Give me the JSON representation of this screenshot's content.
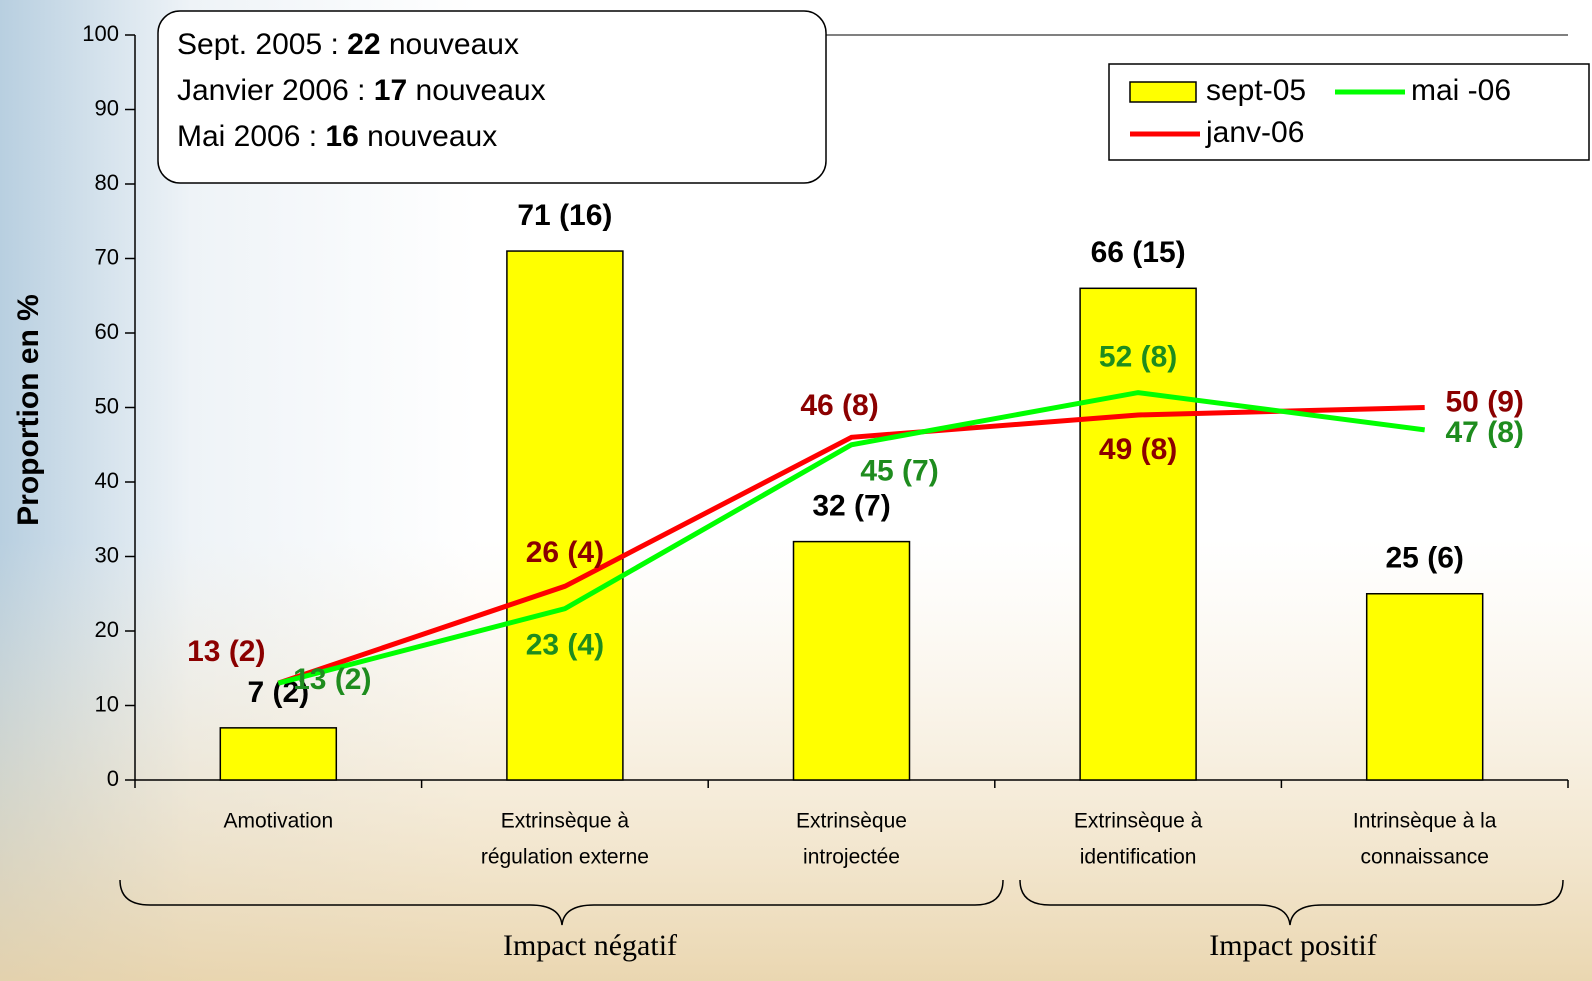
{
  "chart_data": {
    "type": "bar",
    "y_label": "Proportion en %",
    "categories": [
      [
        "Amotivation"
      ],
      [
        "Extrinsèque à",
        "régulation externe"
      ],
      [
        "Extrinsèque",
        "introjectée"
      ],
      [
        "Extrinsèque à",
        "identification"
      ],
      [
        "Intrinsèque à la",
        "connaissance"
      ]
    ],
    "series": [
      {
        "name": "sept-05",
        "type": "bar",
        "color": "#ffff00",
        "label_color": "#000000",
        "values": [
          7,
          71,
          32,
          66,
          25
        ],
        "value_labels": [
          "7 (2)",
          "71 (16)",
          "32 (7)",
          "66 (15)",
          "25 (6)"
        ]
      },
      {
        "name": "janv-06",
        "type": "line",
        "color": "#ff0000",
        "label_color": "#8b0000",
        "values": [
          13,
          26,
          46,
          49,
          50
        ],
        "value_labels": [
          "13 (2)",
          "26 (4)",
          "46 (8)",
          "49 (8)",
          "50 (9)"
        ]
      },
      {
        "name": "mai -06",
        "type": "line",
        "color": "#00ff00",
        "label_color": "#1e8c1e",
        "values": [
          13,
          23,
          45,
          52,
          47
        ],
        "value_labels": [
          "13 (2)",
          "23 (4)",
          "45 (7)",
          "52 (8)",
          "47 (8)"
        ]
      }
    ],
    "ylim": [
      0,
      100
    ],
    "yticks": [
      0,
      10,
      20,
      30,
      40,
      50,
      60,
      70,
      80,
      90,
      100
    ],
    "grid": false,
    "legend": "top-right",
    "annotations": [
      {
        "prefix": "Sept. 2005 : ",
        "count": "22",
        "suffix": " nouveaux"
      },
      {
        "prefix": "Janvier 2006 : ",
        "count": "17",
        "suffix": " nouveaux"
      },
      {
        "prefix": "Mai 2006 : ",
        "count": "16",
        "suffix": " nouveaux"
      }
    ],
    "groups": [
      "Impact négatif",
      "Impact positif"
    ]
  }
}
